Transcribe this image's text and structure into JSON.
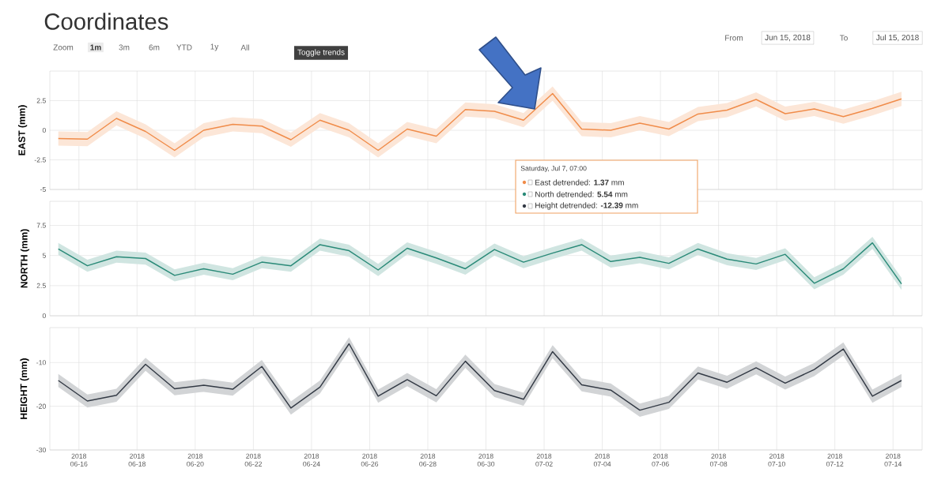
{
  "chart_data": [
    {
      "type": "line",
      "title": "Coordinates",
      "ylabel": "EAST (mm)",
      "annotations": [
        "Zoom",
        "1m",
        "3m",
        "6m",
        "YTD",
        "1y",
        "All",
        "Toggle trends",
        "From",
        "Jun 15, 2018",
        "To",
        "Jul 15, 2018",
        "Saturday, Jul 7, 07:00",
        "East detrended: **1.37** mm",
        "North detrended: **5.54** mm",
        "Height detrended: **-12.39** mm"
      ],
      "x": [
        "2018-06-15T07:00",
        "2018-06-16T07:00",
        "2018-06-17T07:00",
        "2018-06-18T07:00",
        "2018-06-19T07:00",
        "2018-06-20T07:00",
        "2018-06-21T07:00",
        "2018-06-22T07:00",
        "2018-06-23T07:00",
        "2018-06-24T07:00",
        "2018-06-25T07:00",
        "2018-06-26T07:00",
        "2018-06-27T07:00",
        "2018-06-28T07:00",
        "2018-06-29T07:00",
        "2018-06-30T07:00",
        "2018-07-01T07:00",
        "2018-07-02T07:00",
        "2018-07-03T07:00",
        "2018-07-04T07:00",
        "2018-07-05T07:00",
        "2018-07-06T07:00",
        "2018-07-07T07:00",
        "2018-07-08T07:00",
        "2018-07-09T07:00",
        "2018-07-10T07:00",
        "2018-07-11T07:00",
        "2018-07-12T07:00",
        "2018-07-13T07:00",
        "2018-07-14T07:00"
      ],
      "series": [
        {
          "color": "#f08c4a",
          "values": [
            -0.7,
            -0.75,
            1.0,
            -0.1,
            -1.7,
            0.0,
            0.5,
            0.35,
            -0.8,
            0.85,
            0.0,
            -1.7,
            0.1,
            -0.5,
            1.75,
            1.6,
            0.85,
            3.1,
            0.1,
            0.0,
            0.6,
            0.1,
            1.37,
            1.7,
            2.6,
            1.4,
            1.8,
            1.15,
            1.85,
            2.65
          ],
          "lower": [
            -1.3,
            -1.35,
            0.4,
            -0.7,
            -2.3,
            -0.6,
            -0.1,
            -0.25,
            -1.4,
            0.25,
            -0.6,
            -2.3,
            -0.5,
            -1.1,
            1.15,
            1.0,
            0.25,
            2.5,
            -0.5,
            -0.6,
            0.0,
            -0.5,
            0.77,
            1.1,
            2.0,
            0.8,
            1.2,
            0.55,
            1.25,
            2.05
          ],
          "upper": [
            -0.1,
            -0.15,
            1.6,
            0.5,
            -1.1,
            0.6,
            1.1,
            0.95,
            -0.2,
            1.45,
            0.6,
            -1.1,
            0.7,
            0.1,
            2.35,
            2.2,
            1.45,
            3.7,
            0.7,
            0.6,
            1.2,
            0.7,
            1.97,
            2.3,
            3.2,
            2.0,
            2.4,
            1.75,
            2.45,
            3.25
          ]
        }
      ],
      "xlim": [
        "2018-06-15",
        "2018-07-15"
      ],
      "xticks": [
        {
          "value": "2018-06-16",
          "label": null
        },
        {
          "value": "2018-06-18",
          "label": null
        },
        {
          "value": "2018-06-20",
          "label": null
        },
        {
          "value": "2018-06-22",
          "label": null
        },
        {
          "value": "2018-06-24",
          "label": null
        },
        {
          "value": "2018-06-26",
          "label": null
        },
        {
          "value": "2018-06-28",
          "label": null
        },
        {
          "value": "2018-06-30",
          "label": null
        },
        {
          "value": "2018-07-02",
          "label": null
        },
        {
          "value": "2018-07-04",
          "label": null
        },
        {
          "value": "2018-07-06",
          "label": null
        },
        {
          "value": "2018-07-08",
          "label": null
        },
        {
          "value": "2018-07-10",
          "label": null
        },
        {
          "value": "2018-07-12",
          "label": null
        },
        {
          "value": "2018-07-14",
          "label": null
        }
      ],
      "ylim": [
        -5,
        5
      ],
      "yticks": [
        -5,
        -2.5,
        0,
        2.5
      ],
      "grid": true,
      "tick_labels": "y"
    },
    {
      "type": "line",
      "ylabel": "NORTH (mm)",
      "x": [
        "2018-06-15T07:00",
        "2018-06-16T07:00",
        "2018-06-17T07:00",
        "2018-06-18T07:00",
        "2018-06-19T07:00",
        "2018-06-20T07:00",
        "2018-06-21T07:00",
        "2018-06-22T07:00",
        "2018-06-23T07:00",
        "2018-06-24T07:00",
        "2018-06-25T07:00",
        "2018-06-26T07:00",
        "2018-06-27T07:00",
        "2018-06-28T07:00",
        "2018-06-29T07:00",
        "2018-06-30T07:00",
        "2018-07-01T07:00",
        "2018-07-02T07:00",
        "2018-07-03T07:00",
        "2018-07-04T07:00",
        "2018-07-05T07:00",
        "2018-07-06T07:00",
        "2018-07-07T07:00",
        "2018-07-08T07:00",
        "2018-07-09T07:00",
        "2018-07-10T07:00",
        "2018-07-11T07:00",
        "2018-07-12T07:00",
        "2018-07-13T07:00",
        "2018-07-14T07:00"
      ],
      "series": [
        {
          "color": "#2a8a78",
          "values": [
            5.55,
            4.15,
            4.9,
            4.75,
            3.35,
            3.9,
            3.45,
            4.45,
            4.15,
            5.9,
            5.4,
            3.8,
            5.6,
            4.8,
            3.9,
            5.5,
            4.45,
            5.2,
            5.9,
            4.5,
            4.85,
            4.35,
            5.54,
            4.7,
            4.3,
            5.1,
            2.7,
            3.9,
            6.05,
            2.65
          ],
          "lower": [
            5.05,
            3.65,
            4.4,
            4.25,
            2.85,
            3.4,
            2.95,
            3.95,
            3.65,
            5.4,
            4.9,
            3.3,
            5.1,
            4.3,
            3.4,
            5.0,
            3.95,
            4.7,
            5.4,
            4.0,
            4.35,
            3.85,
            5.04,
            4.2,
            3.8,
            4.6,
            2.2,
            3.4,
            5.55,
            2.15
          ],
          "upper": [
            6.05,
            4.65,
            5.4,
            5.25,
            3.85,
            4.4,
            3.95,
            4.95,
            4.65,
            6.4,
            5.9,
            4.3,
            6.1,
            5.3,
            4.4,
            6.0,
            4.95,
            5.7,
            6.4,
            5.0,
            5.35,
            4.85,
            6.04,
            5.2,
            4.8,
            5.6,
            3.2,
            4.4,
            6.55,
            3.15
          ]
        }
      ],
      "xlim": [
        "2018-06-15",
        "2018-07-15"
      ],
      "xticks": [
        {
          "value": "2018-06-16",
          "label": null
        },
        {
          "value": "2018-06-18",
          "label": null
        },
        {
          "value": "2018-06-20",
          "label": null
        },
        {
          "value": "2018-06-22",
          "label": null
        },
        {
          "value": "2018-06-24",
          "label": null
        },
        {
          "value": "2018-06-26",
          "label": null
        },
        {
          "value": "2018-06-28",
          "label": null
        },
        {
          "value": "2018-06-30",
          "label": null
        },
        {
          "value": "2018-07-02",
          "label": null
        },
        {
          "value": "2018-07-04",
          "label": null
        },
        {
          "value": "2018-07-06",
          "label": null
        },
        {
          "value": "2018-07-08",
          "label": null
        },
        {
          "value": "2018-07-10",
          "label": null
        },
        {
          "value": "2018-07-12",
          "label": null
        },
        {
          "value": "2018-07-14",
          "label": null
        }
      ],
      "ylim": [
        0,
        9.5
      ],
      "yticks": [
        0,
        2.5,
        5,
        7.5
      ],
      "grid": true,
      "tick_labels": "y"
    },
    {
      "type": "line",
      "ylabel": "HEIGHT (mm)",
      "x": [
        "2018-06-15T07:00",
        "2018-06-16T07:00",
        "2018-06-17T07:00",
        "2018-06-18T07:00",
        "2018-06-19T07:00",
        "2018-06-20T07:00",
        "2018-06-21T07:00",
        "2018-06-22T07:00",
        "2018-06-23T07:00",
        "2018-06-24T07:00",
        "2018-06-25T07:00",
        "2018-06-26T07:00",
        "2018-06-27T07:00",
        "2018-06-28T07:00",
        "2018-06-29T07:00",
        "2018-06-30T07:00",
        "2018-07-01T07:00",
        "2018-07-02T07:00",
        "2018-07-03T07:00",
        "2018-07-04T07:00",
        "2018-07-05T07:00",
        "2018-07-06T07:00",
        "2018-07-07T07:00",
        "2018-07-08T07:00",
        "2018-07-09T07:00",
        "2018-07-10T07:00",
        "2018-07-11T07:00",
        "2018-07-12T07:00",
        "2018-07-13T07:00",
        "2018-07-14T07:00"
      ],
      "series": [
        {
          "color": "#333a45",
          "values": [
            -14.1,
            -18.8,
            -17.5,
            -10.4,
            -16,
            -15.2,
            -16.1,
            -10.9,
            -20.4,
            -15.6,
            -5.7,
            -17.7,
            -13.9,
            -17.6,
            -9.7,
            -16.4,
            -18.4,
            -7.5,
            -15.1,
            -16.3,
            -20.9,
            -19.1,
            -12.39,
            -14.5,
            -11.2,
            -14.7,
            -11.6,
            -6.9,
            -17.7,
            -14.1
          ],
          "lower": [
            -15.6,
            -20.3,
            -19,
            -11.9,
            -17.5,
            -16.7,
            -17.6,
            -12.4,
            -21.9,
            -17.1,
            -7.2,
            -19.2,
            -15.4,
            -19.1,
            -11.2,
            -17.9,
            -19.9,
            -9,
            -16.6,
            -17.8,
            -22.4,
            -20.6,
            -13.89,
            -16,
            -12.7,
            -16.2,
            -13.1,
            -8.4,
            -19.2,
            -15.6
          ],
          "upper": [
            -12.6,
            -17.3,
            -16,
            -8.9,
            -14.5,
            -13.7,
            -14.6,
            -9.4,
            -18.9,
            -14.1,
            -4.2,
            -16.2,
            -12.4,
            -16.1,
            -8.2,
            -14.9,
            -16.9,
            -6,
            -13.6,
            -14.8,
            -19.4,
            -17.6,
            -10.89,
            -13,
            -9.7,
            -13.2,
            -10.1,
            -5.4,
            -16.2,
            -12.6
          ]
        }
      ],
      "xlim": [
        "2018-06-15",
        "2018-07-15"
      ],
      "xticks": [
        {
          "value": "2018-06-16",
          "label": "2018 06-16"
        },
        {
          "value": "2018-06-18",
          "label": "2018 06-18"
        },
        {
          "value": "2018-06-20",
          "label": "2018 06-20"
        },
        {
          "value": "2018-06-22",
          "label": "2018 06-22"
        },
        {
          "value": "2018-06-24",
          "label": "2018 06-24"
        },
        {
          "value": "2018-06-26",
          "label": "2018 06-26"
        },
        {
          "value": "2018-06-28",
          "label": "2018 06-28"
        },
        {
          "value": "2018-06-30",
          "label": "2018 06-30"
        },
        {
          "value": "2018-07-02",
          "label": "2018 07-02"
        },
        {
          "value": "2018-07-04",
          "label": "2018 07-04"
        },
        {
          "value": "2018-07-06",
          "label": "2018 07-06"
        },
        {
          "value": "2018-07-08",
          "label": "2018 07-08"
        },
        {
          "value": "2018-07-10",
          "label": "2018 07-10"
        },
        {
          "value": "2018-07-12",
          "label": "2018 07-12"
        },
        {
          "value": "2018-07-14",
          "label": "2018 07-14"
        }
      ],
      "ylim": [
        -30,
        -2
      ],
      "yticks": [
        -30,
        -20,
        -10
      ],
      "grid": true
    }
  ]
}
